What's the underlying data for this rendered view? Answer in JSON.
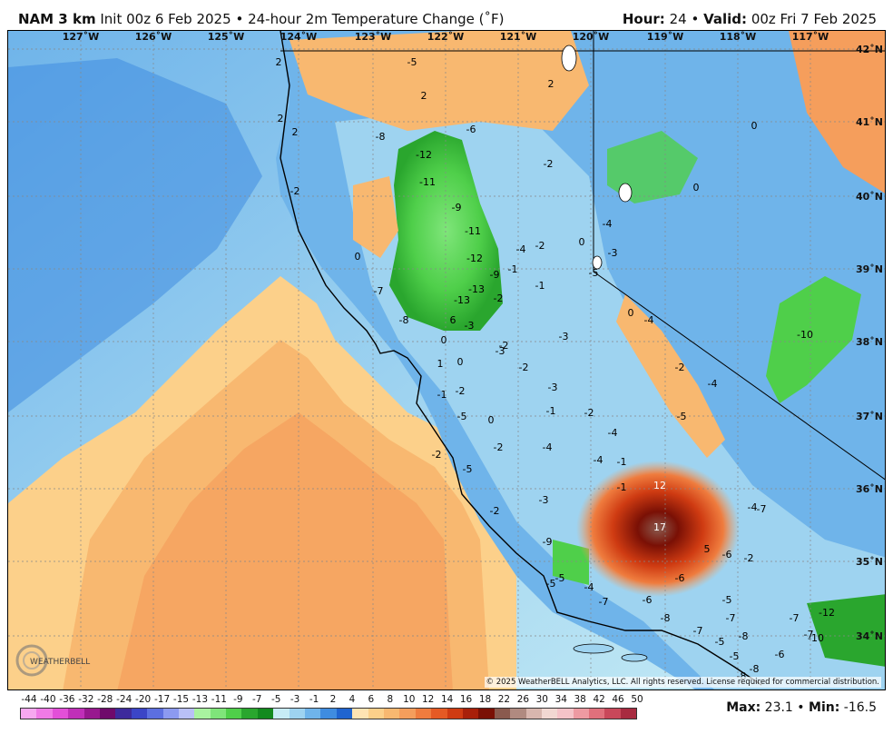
{
  "header": {
    "model": "NAM 3 km",
    "init": "Init 00z 6 Feb 2025",
    "separator": "•",
    "product": "24-hour 2m Temperature Change (˚F)",
    "hour_label": "Hour:",
    "hour_value": "24",
    "valid_label": "Valid:",
    "valid_value": "00z Fri 7 Feb 2025"
  },
  "axes": {
    "longitudes": [
      "127˚W",
      "126˚W",
      "125˚W",
      "124˚W",
      "123˚W",
      "122˚W",
      "121˚W",
      "120˚W",
      "119˚W",
      "118˚W",
      "117˚W"
    ],
    "latitudes": [
      "42˚N",
      "41˚N",
      "40˚N",
      "39˚N",
      "38˚N",
      "37˚N",
      "36˚N",
      "35˚N",
      "34˚N"
    ]
  },
  "map_values": [
    "-5",
    "2",
    "2",
    "2",
    "2",
    "-6",
    "2",
    "-8",
    "-12",
    "-11",
    "-2",
    "-2",
    "-9",
    "0",
    "0",
    "-11",
    "-4",
    "-2",
    "0",
    "-4",
    "-3",
    "-12",
    "-1",
    "0",
    "-1",
    "-13",
    "-2",
    "-5",
    "-7",
    "-13",
    "0",
    "-9",
    "-8",
    "6",
    "-3",
    "-4",
    "-10",
    "0",
    "-3",
    "-2",
    "-2",
    "0",
    "-3",
    "-2",
    "-4",
    "-5",
    "0",
    "-2",
    "-4",
    "-4",
    "-1",
    "-4",
    "12",
    "-4",
    "-7",
    "-6",
    "17",
    "5",
    "-6",
    "-2",
    "-9",
    "-5",
    "-4",
    "-5",
    "-7",
    "-6",
    "-5",
    "-7",
    "-8",
    "-7",
    "-8",
    "-6",
    "-7",
    "-5",
    "-7",
    "-12",
    "-10",
    "-8",
    "-5",
    "-8",
    "1",
    "-2",
    "-3",
    "-1",
    "-5",
    "-2",
    "-2",
    "-1",
    "-3",
    "-5",
    "-2",
    "-1"
  ],
  "copyright": "© 2025 WeatherBELL Analytics, LLC. All rights reserved. License required for commercial distribution.",
  "logo_text": "WEATHERBELL",
  "legend": {
    "labels": [
      "-44",
      "-40",
      "-36",
      "-32",
      "-28",
      "-24",
      "-20",
      "-17",
      "-15",
      "-13",
      "-11",
      "-9",
      "-7",
      "-5",
      "-3",
      "-1",
      "2",
      "4",
      "6",
      "8",
      "10",
      "12",
      "14",
      "16",
      "18",
      "22",
      "26",
      "30",
      "34",
      "38",
      "42",
      "46",
      "50"
    ],
    "colors": [
      "#f7a8f0",
      "#f07ae6",
      "#e34fd8",
      "#c02fb8",
      "#98188f",
      "#6f0a6b",
      "#3d2a9c",
      "#3b45c7",
      "#5c6fe0",
      "#8c9af0",
      "#b9c0f7",
      "#a9f3a0",
      "#7fe57a",
      "#4fcf4a",
      "#2aa62e",
      "#138a1e",
      "#c7ecf5",
      "#9ed3f0",
      "#6fb4ea",
      "#3f8ce0",
      "#1f64d0",
      "#ffe4b3",
      "#fcd08a",
      "#f8b870",
      "#f59e5c",
      "#ef7c3e",
      "#e55a24",
      "#cf3b12",
      "#a8200a",
      "#7a1005",
      "#8a5a4e",
      "#b08a80",
      "#d8b6ae",
      "#f2d8d2",
      "#f5c3c8",
      "#ee9aa2",
      "#e0707c",
      "#c9485a",
      "#a82b40"
    ]
  },
  "stats": {
    "max_label": "Max:",
    "max_value": "23.1",
    "min_label": "Min:",
    "min_value": "-16.5"
  }
}
